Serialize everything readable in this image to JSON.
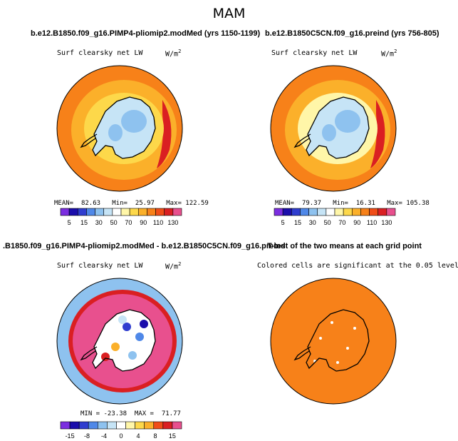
{
  "page_title": "MAM",
  "chart_data": [
    {
      "type": "heatmap",
      "title": "b.e12.B1850.f09_g16.PIMP4-pliomip2.modMed (yrs 1150-1199)",
      "subtitle": "Surf clearsky net LW",
      "units": "W/m",
      "units_exp": "2",
      "stats": {
        "mean_label": "MEAN=",
        "mean": "82.63",
        "min_label": "Min=",
        "min": "25.97",
        "max_label": "Max=",
        "max": "122.59"
      },
      "colorbar": {
        "colors": [
          "#7b2ee0",
          "#1a0dab",
          "#2f3dcf",
          "#4f88e8",
          "#8ec2ef",
          "#c6e4f6",
          "#ffffff",
          "#fff6a8",
          "#fdd84a",
          "#fbb02a",
          "#f78119",
          "#f04d18",
          "#da1f22",
          "#e8508e"
        ],
        "labels": [
          "5",
          "15",
          "30",
          "50",
          "70",
          "90",
          "110",
          "130"
        ]
      },
      "field": {
        "ocean": "#f78119",
        "inner_ring": "#fbb02a",
        "coast_band": "#fdd84a",
        "hot_patch": "#da1f22",
        "ice": "#c6e4f6",
        "ice_low": "#8ec2ef",
        "coast_line": "#000000"
      }
    },
    {
      "type": "heatmap",
      "title": "b.e12.B1850C5CN.f09_g16.preind (yrs 756-805)",
      "subtitle": "Surf clearsky net LW",
      "units": "W/m",
      "units_exp": "2",
      "stats": {
        "mean_label": "MEAN=",
        "mean": "79.37",
        "min_label": "Min=",
        "min": "16.31",
        "max_label": "Max=",
        "max": "105.38"
      },
      "colorbar": {
        "colors": [
          "#7b2ee0",
          "#1a0dab",
          "#2f3dcf",
          "#4f88e8",
          "#8ec2ef",
          "#c6e4f6",
          "#ffffff",
          "#fff6a8",
          "#fdd84a",
          "#fbb02a",
          "#f78119",
          "#f04d18",
          "#da1f22",
          "#e8508e"
        ],
        "labels": [
          "5",
          "15",
          "30",
          "50",
          "70",
          "90",
          "110",
          "130"
        ]
      },
      "field": {
        "ocean": "#f78119",
        "inner_ring": "#fbb02a",
        "coast_band": "#fff6a8",
        "hot_patch": "#da1f22",
        "ice": "#c6e4f6",
        "ice_low": "#8ec2ef",
        "coast_line": "#000000"
      }
    },
    {
      "type": "heatmap",
      "title": ".B1850.f09_g16.PIMP4-pliomip2.modMed - b.e12.B1850C5CN.f09_g16.preind",
      "subtitle": "Surf clearsky net LW",
      "units": "W/m",
      "units_exp": "2",
      "stats": {
        "min_label": "MIN =",
        "min": "-23.38",
        "max_label": "MAX =",
        "max": "71.77"
      },
      "colorbar": {
        "colors": [
          "#7b2ee0",
          "#1a0dab",
          "#2f3dcf",
          "#4f88e8",
          "#8ec2ef",
          "#c6e4f6",
          "#ffffff",
          "#fff6a8",
          "#fdd84a",
          "#fbb02a",
          "#f04d18",
          "#da1f22",
          "#e8508e"
        ],
        "labels": [
          "-15",
          "-8",
          "-4",
          "0",
          "4",
          "8",
          "15"
        ]
      },
      "field": {
        "ocean": "#8ec2ef",
        "ring_red": "#da1f22",
        "ring_pink": "#e8508e",
        "ice_mix": "#ffffff",
        "coast_line": "#000000"
      }
    },
    {
      "type": "heatmap",
      "title": "T-test of the two means at each grid point",
      "subtitle": "Colored cells are significant at the 0.05 level",
      "field": {
        "significant": "#f78119",
        "not_significant": "#ffffff",
        "coast_line": "#000000"
      }
    }
  ]
}
